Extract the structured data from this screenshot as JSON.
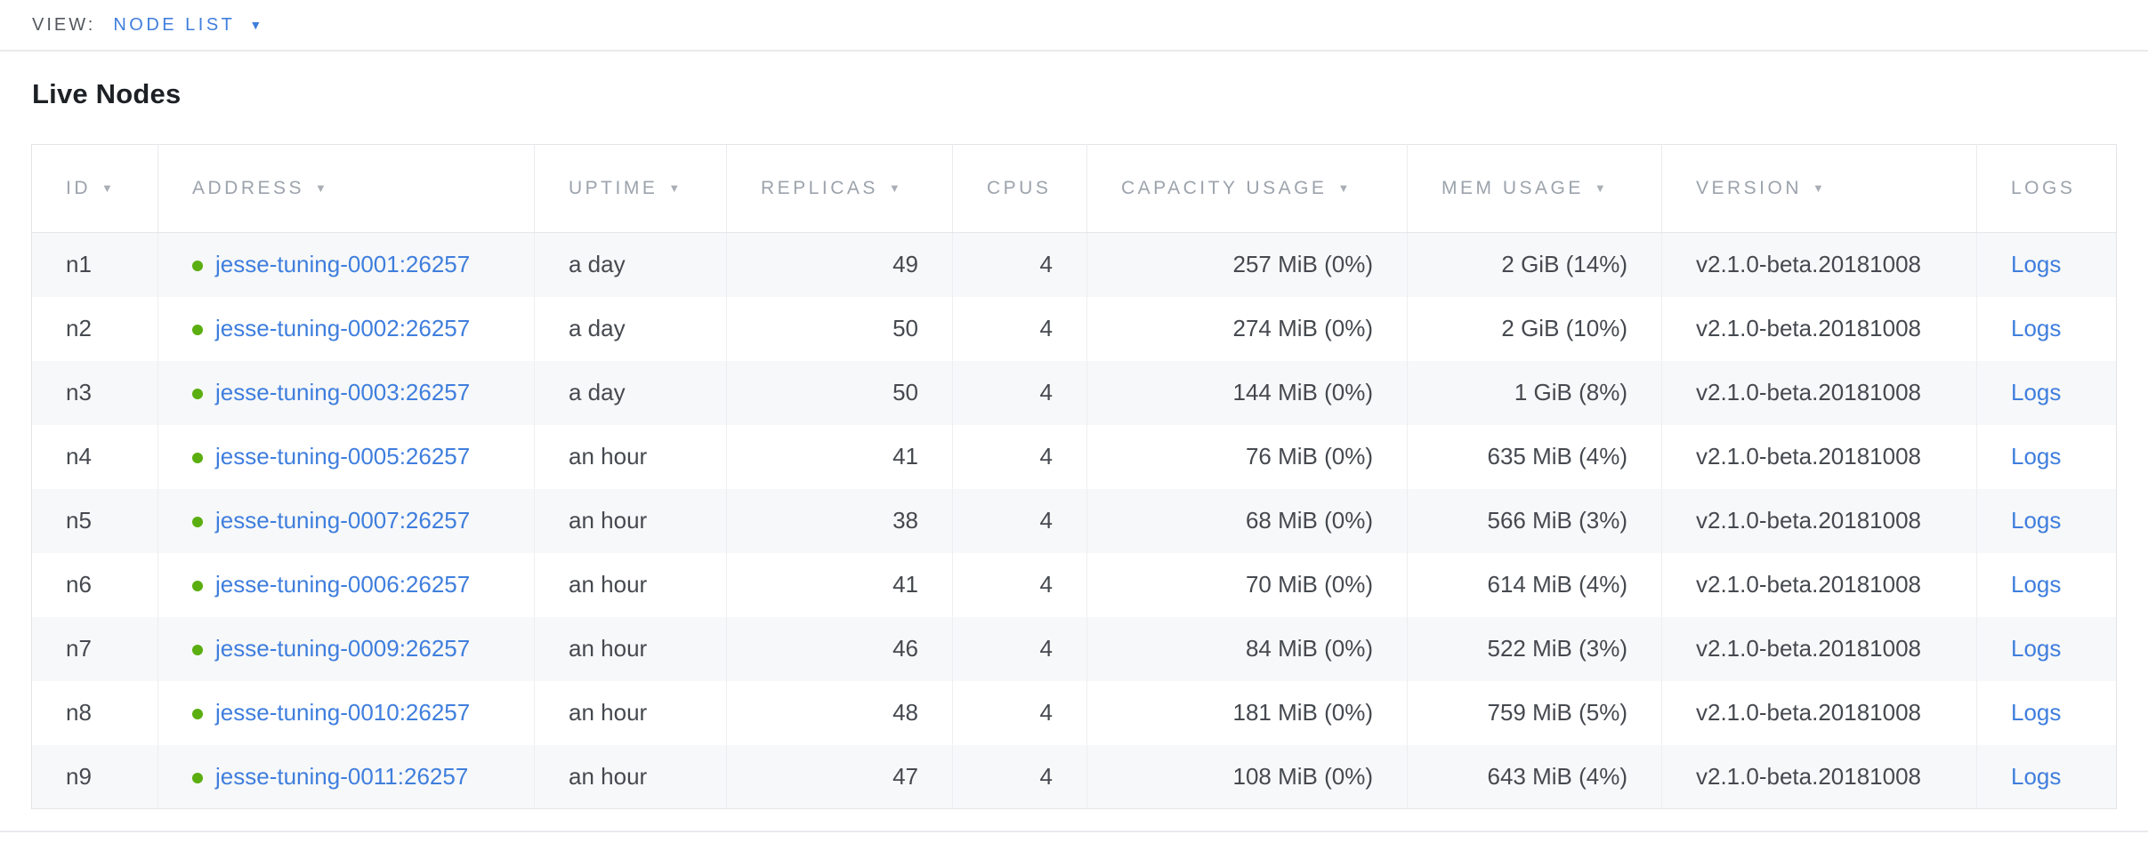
{
  "view_selector": {
    "label": "VIEW:",
    "value": "NODE LIST"
  },
  "icons": {
    "sort_desc": "▼",
    "caret_down": "▼"
  },
  "colors": {
    "link_blue": "#3f7edd",
    "status_healthy_green": "#5aae0f",
    "header_text_gray": "#9ca3ac",
    "row_stripe": "#f7f8f9",
    "cell_text": "#45494f",
    "title_text": "#1d2125"
  },
  "page": {
    "title": "Live Nodes"
  },
  "table": {
    "columns": [
      {
        "label": "ID",
        "sortable": true
      },
      {
        "label": "ADDRESS",
        "sortable": true
      },
      {
        "label": "UPTIME",
        "sortable": true
      },
      {
        "label": "REPLICAS",
        "sortable": true
      },
      {
        "label": "CPUS",
        "sortable": false
      },
      {
        "label": "CAPACITY USAGE",
        "sortable": true
      },
      {
        "label": "MEM USAGE",
        "sortable": true
      },
      {
        "label": "VERSION",
        "sortable": true
      },
      {
        "label": "LOGS",
        "sortable": false
      }
    ],
    "rows": [
      {
        "id": "n1",
        "status": "healthy",
        "address": "jesse-tuning-0001:26257",
        "uptime": "a day",
        "replicas": "49",
        "cpus": "4",
        "capacity_usage": "257 MiB (0%)",
        "mem_usage": "2 GiB (14%)",
        "version": "v2.1.0-beta.20181008",
        "logs": "Logs"
      },
      {
        "id": "n2",
        "status": "healthy",
        "address": "jesse-tuning-0002:26257",
        "uptime": "a day",
        "replicas": "50",
        "cpus": "4",
        "capacity_usage": "274 MiB (0%)",
        "mem_usage": "2 GiB (10%)",
        "version": "v2.1.0-beta.20181008",
        "logs": "Logs"
      },
      {
        "id": "n3",
        "status": "healthy",
        "address": "jesse-tuning-0003:26257",
        "uptime": "a day",
        "replicas": "50",
        "cpus": "4",
        "capacity_usage": "144 MiB (0%)",
        "mem_usage": "1 GiB (8%)",
        "version": "v2.1.0-beta.20181008",
        "logs": "Logs"
      },
      {
        "id": "n4",
        "status": "healthy",
        "address": "jesse-tuning-0005:26257",
        "uptime": "an hour",
        "replicas": "41",
        "cpus": "4",
        "capacity_usage": "76 MiB (0%)",
        "mem_usage": "635 MiB (4%)",
        "version": "v2.1.0-beta.20181008",
        "logs": "Logs"
      },
      {
        "id": "n5",
        "status": "healthy",
        "address": "jesse-tuning-0007:26257",
        "uptime": "an hour",
        "replicas": "38",
        "cpus": "4",
        "capacity_usage": "68 MiB (0%)",
        "mem_usage": "566 MiB (3%)",
        "version": "v2.1.0-beta.20181008",
        "logs": "Logs"
      },
      {
        "id": "n6",
        "status": "healthy",
        "address": "jesse-tuning-0006:26257",
        "uptime": "an hour",
        "replicas": "41",
        "cpus": "4",
        "capacity_usage": "70 MiB (0%)",
        "mem_usage": "614 MiB (4%)",
        "version": "v2.1.0-beta.20181008",
        "logs": "Logs"
      },
      {
        "id": "n7",
        "status": "healthy",
        "address": "jesse-tuning-0009:26257",
        "uptime": "an hour",
        "replicas": "46",
        "cpus": "4",
        "capacity_usage": "84 MiB (0%)",
        "mem_usage": "522 MiB (3%)",
        "version": "v2.1.0-beta.20181008",
        "logs": "Logs"
      },
      {
        "id": "n8",
        "status": "healthy",
        "address": "jesse-tuning-0010:26257",
        "uptime": "an hour",
        "replicas": "48",
        "cpus": "4",
        "capacity_usage": "181 MiB (0%)",
        "mem_usage": "759 MiB (5%)",
        "version": "v2.1.0-beta.20181008",
        "logs": "Logs"
      },
      {
        "id": "n9",
        "status": "healthy",
        "address": "jesse-tuning-0011:26257",
        "uptime": "an hour",
        "replicas": "47",
        "cpus": "4",
        "capacity_usage": "108 MiB (0%)",
        "mem_usage": "643 MiB (4%)",
        "version": "v2.1.0-beta.20181008",
        "logs": "Logs"
      }
    ]
  }
}
